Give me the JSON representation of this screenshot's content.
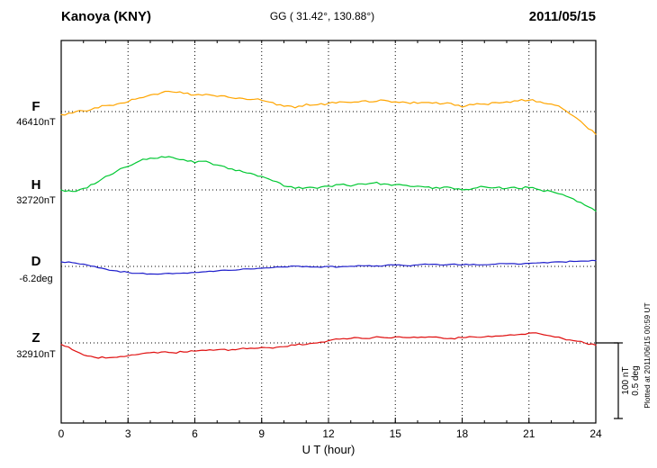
{
  "header": {
    "station": "Kanoya (KNY)",
    "coordinates": "GG ( 31.42°, 130.88°)",
    "date": "2011/05/15"
  },
  "footer": {
    "plotted_at": "Plotted at 2011/06/15 00:59 UT"
  },
  "chart_data": {
    "type": "line",
    "title": "Kanoya (KNY)",
    "xlabel": "U T (hour)",
    "xlim": [
      0,
      24
    ],
    "x_ticks": [
      0,
      3,
      6,
      9,
      12,
      15,
      18,
      21,
      24
    ],
    "grid_hours": [
      3,
      6,
      9,
      12,
      15,
      18,
      21
    ],
    "grid": "dotted-vertical-and-baselines",
    "x_start_hour": 0,
    "x_step_hours": 0.5,
    "scale_bar": {
      "nT_label": "100 nT",
      "deg_label": "0.5 deg",
      "nT_value": 100,
      "deg_value": 0.5
    },
    "series": [
      {
        "name": "F",
        "color": "#FFA500",
        "unit": "nT",
        "baseline_label": "46410nT",
        "baseline_value": 46410,
        "noise": 1.6,
        "offsets": [
          -4,
          -2,
          1,
          5,
          8,
          10,
          13,
          18,
          22,
          25,
          26,
          24,
          22,
          23,
          20,
          19,
          18,
          16,
          15,
          12,
          7,
          5,
          10,
          9,
          11,
          13,
          12,
          14,
          13,
          15,
          13,
          12,
          11,
          12,
          10,
          11,
          6,
          9,
          10,
          12,
          13,
          14,
          15,
          13,
          10,
          4,
          -6,
          -18,
          -30
        ]
      },
      {
        "name": "H",
        "color": "#00C832",
        "unit": "nT",
        "baseline_label": "32720nT",
        "baseline_value": 32720,
        "noise": 1.6,
        "offsets": [
          0,
          -2,
          2,
          8,
          18,
          25,
          31,
          38,
          42,
          44,
          43,
          40,
          36,
          38,
          33,
          28,
          26,
          22,
          18,
          12,
          5,
          2,
          3,
          2,
          5,
          7,
          5,
          8,
          9,
          8,
          7,
          6,
          5,
          4,
          2,
          3,
          0,
          2,
          4,
          3,
          2,
          2,
          3,
          0,
          -2,
          -6,
          -12,
          -20,
          -28
        ]
      },
      {
        "name": "D",
        "color": "#2020CC",
        "unit": "deg",
        "baseline_label": "-6.2deg",
        "baseline_value": -6.2,
        "noise": 0.004,
        "offsets": [
          0.03,
          0.025,
          0.015,
          0.0,
          -0.018,
          -0.03,
          -0.04,
          -0.046,
          -0.05,
          -0.05,
          -0.048,
          -0.044,
          -0.04,
          -0.035,
          -0.03,
          -0.026,
          -0.022,
          -0.017,
          -0.012,
          -0.008,
          -0.003,
          0.002,
          0.0,
          -0.004,
          0.0,
          -0.003,
          0.001,
          0.004,
          0.001,
          0.005,
          0.009,
          0.005,
          0.01,
          0.013,
          0.01,
          0.014,
          0.01,
          0.014,
          0.011,
          0.015,
          0.018,
          0.015,
          0.02,
          0.024,
          0.028,
          0.03,
          0.033,
          0.035,
          0.038
        ]
      },
      {
        "name": "Z",
        "color": "#E01010",
        "unit": "nT",
        "baseline_label": "32910nT",
        "baseline_value": 32910,
        "noise": 1.2,
        "offsets": [
          -2,
          -9,
          -16,
          -19,
          -20,
          -19,
          -17,
          -15,
          -13,
          -12,
          -13,
          -12,
          -11,
          -10,
          -9,
          -10,
          -8,
          -7,
          -6,
          -7,
          -5,
          -3,
          -2,
          0,
          3,
          5,
          6,
          6,
          7,
          7,
          8,
          7,
          7,
          8,
          7,
          6,
          7,
          8,
          8,
          9,
          10,
          11,
          13,
          12,
          9,
          6,
          3,
          0,
          -3
        ]
      }
    ]
  }
}
